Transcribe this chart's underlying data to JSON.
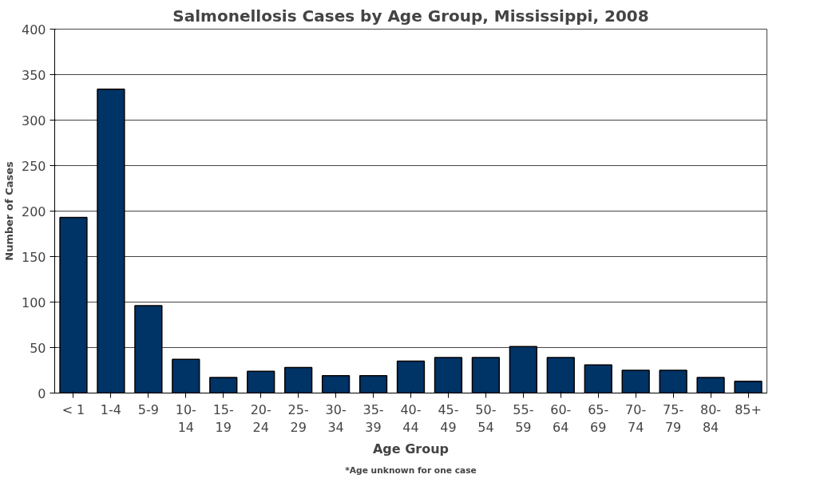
{
  "chart_data": {
    "type": "bar",
    "title": "Salmonellosis Cases by Age Group, Mississippi, 2008",
    "xlabel": "Age Group",
    "ylabel": "Number of Cases",
    "annotations": [
      "*Age unknown for one case"
    ],
    "categories": [
      "< 1",
      "1-4",
      "5-9",
      "10-\n14",
      "15-\n19",
      "20-\n24",
      "25-\n29",
      "30-\n34",
      "35-\n39",
      "40-\n44",
      "45-\n49",
      "50-\n54",
      "55-\n59",
      "60-\n64",
      "65-\n69",
      "70-\n74",
      "75-\n79",
      "80-\n84",
      "85+"
    ],
    "values": [
      193,
      334,
      96,
      37,
      17,
      24,
      28,
      19,
      19,
      35,
      39,
      39,
      51,
      39,
      31,
      25,
      25,
      17,
      13
    ],
    "color": "#003366",
    "ylim": [
      0,
      400
    ],
    "yticks": [
      0,
      50,
      100,
      150,
      200,
      250,
      300,
      350,
      400
    ],
    "grid": "y"
  }
}
